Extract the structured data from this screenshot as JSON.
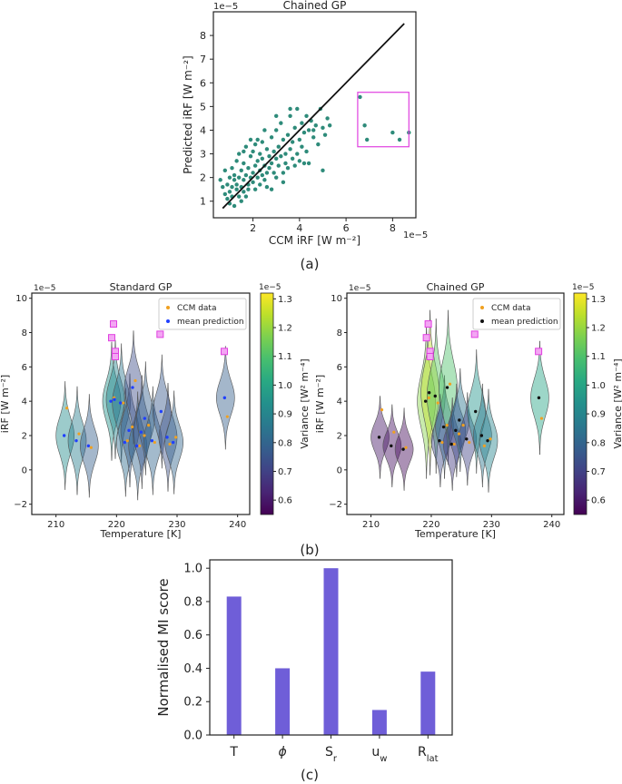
{
  "chart_data": [
    {
      "id": "a",
      "type": "scatter",
      "title": "Chained GP",
      "xlabel": "CCM iRF [W m⁻²]",
      "ylabel": "Predicted iRF [W m⁻²]",
      "x_offset": "1e−5",
      "y_offset": "1e−5",
      "xticks": [
        "2",
        "4",
        "6",
        "8"
      ],
      "yticks": [
        "1",
        "2",
        "3",
        "4",
        "5",
        "6",
        "7",
        "8"
      ],
      "xlim": [
        0.3,
        9.0
      ],
      "ylim": [
        0.3,
        9.0
      ],
      "identity_line": [
        [
          0.7,
          0.7
        ],
        [
          8.5,
          8.5
        ]
      ],
      "highlight_box": {
        "x": [
          6.5,
          8.7
        ],
        "y": [
          3.3,
          5.6
        ]
      },
      "point_color": "#2e8b7a",
      "points": [
        [
          0.6,
          1.9
        ],
        [
          0.7,
          1.6
        ],
        [
          0.8,
          1.3
        ],
        [
          0.8,
          2.3
        ],
        [
          0.9,
          1.7
        ],
        [
          0.9,
          1.1
        ],
        [
          1.0,
          2.0
        ],
        [
          1.0,
          1.4
        ],
        [
          1.0,
          0.9
        ],
        [
          1.1,
          2.4
        ],
        [
          1.1,
          1.6
        ],
        [
          1.1,
          1.2
        ],
        [
          1.2,
          1.9
        ],
        [
          1.2,
          2.1
        ],
        [
          1.2,
          0.8
        ],
        [
          1.3,
          1.5
        ],
        [
          1.3,
          1.7
        ],
        [
          1.3,
          2.7
        ],
        [
          1.4,
          1.2
        ],
        [
          1.4,
          2.0
        ],
        [
          1.4,
          3.0
        ],
        [
          1.5,
          1.6
        ],
        [
          1.5,
          2.3
        ],
        [
          1.5,
          1.0
        ],
        [
          1.6,
          1.9
        ],
        [
          1.6,
          1.4
        ],
        [
          1.6,
          2.6
        ],
        [
          1.7,
          1.2
        ],
        [
          1.7,
          2.1
        ],
        [
          1.7,
          3.3
        ],
        [
          1.8,
          1.7
        ],
        [
          1.8,
          2.4
        ],
        [
          1.8,
          1.5
        ],
        [
          1.9,
          2.0
        ],
        [
          1.9,
          2.9
        ],
        [
          1.9,
          3.6
        ],
        [
          2.0,
          1.8
        ],
        [
          2.0,
          2.2
        ],
        [
          2.0,
          3.1
        ],
        [
          2.1,
          1.5
        ],
        [
          2.1,
          2.5
        ],
        [
          2.1,
          3.4
        ],
        [
          2.2,
          2.0
        ],
        [
          2.2,
          2.7
        ],
        [
          2.3,
          1.7
        ],
        [
          2.3,
          2.3
        ],
        [
          2.3,
          3.0
        ],
        [
          2.4,
          2.1
        ],
        [
          2.4,
          2.8
        ],
        [
          2.4,
          3.5
        ],
        [
          2.5,
          1.9
        ],
        [
          2.5,
          2.5
        ],
        [
          2.6,
          2.2
        ],
        [
          2.6,
          3.2
        ],
        [
          2.6,
          1.6
        ],
        [
          2.7,
          2.4
        ],
        [
          2.7,
          2.9
        ],
        [
          2.8,
          2.6
        ],
        [
          2.8,
          3.7
        ],
        [
          2.8,
          1.5
        ],
        [
          2.9,
          2.2
        ],
        [
          2.9,
          3.1
        ],
        [
          3.0,
          2.8
        ],
        [
          3.0,
          2.0
        ],
        [
          3.0,
          4.0
        ],
        [
          3.1,
          3.3
        ],
        [
          3.1,
          2.5
        ],
        [
          3.2,
          2.9
        ],
        [
          3.2,
          4.3
        ],
        [
          3.3,
          2.2
        ],
        [
          3.3,
          3.6
        ],
        [
          3.3,
          1.8
        ],
        [
          3.4,
          3.0
        ],
        [
          3.4,
          2.6
        ],
        [
          3.5,
          3.8
        ],
        [
          3.5,
          2.4
        ],
        [
          3.6,
          3.2
        ],
        [
          3.6,
          4.6
        ],
        [
          3.7,
          2.8
        ],
        [
          3.7,
          3.5
        ],
        [
          3.8,
          2.5
        ],
        [
          3.8,
          4.1
        ],
        [
          3.9,
          3.0
        ],
        [
          3.9,
          4.9
        ],
        [
          4.0,
          3.6
        ],
        [
          4.0,
          2.7
        ],
        [
          4.1,
          4.3
        ],
        [
          4.1,
          3.3
        ],
        [
          4.2,
          2.6
        ],
        [
          4.2,
          3.9
        ],
        [
          4.3,
          4.6
        ],
        [
          4.3,
          3.1
        ],
        [
          4.4,
          4.0
        ],
        [
          4.4,
          2.6
        ],
        [
          4.5,
          4.4
        ],
        [
          4.6,
          3.7
        ],
        [
          4.7,
          4.2
        ],
        [
          4.8,
          3.4
        ],
        [
          4.9,
          4.9
        ],
        [
          5.0,
          4.1
        ],
        [
          5.0,
          2.3
        ],
        [
          5.1,
          3.8
        ],
        [
          5.2,
          4.5
        ],
        [
          5.3,
          4.2
        ],
        [
          2.2,
          3.6
        ],
        [
          1.6,
          3.1
        ],
        [
          2.5,
          4.0
        ],
        [
          3.0,
          4.6
        ],
        [
          3.6,
          4.9
        ],
        [
          4.6,
          4.0
        ],
        [
          6.6,
          5.4
        ],
        [
          6.8,
          4.2
        ],
        [
          6.9,
          3.6
        ],
        [
          8.0,
          3.9
        ],
        [
          8.3,
          3.6
        ],
        [
          8.7,
          3.9
        ]
      ]
    },
    {
      "id": "b_standard",
      "type": "violin",
      "title": "Standard GP",
      "xlabel": "Temperature [K]",
      "ylabel": "iRF [W m⁻²]",
      "y_offset": "1e−5",
      "xticks": [
        "210",
        "220",
        "230",
        "240"
      ],
      "yticks": [
        "−2",
        "0",
        "2",
        "4",
        "6",
        "8",
        "10"
      ],
      "xlim": [
        206,
        242
      ],
      "ylim": [
        -2.6,
        10.3
      ],
      "colorbar": {
        "label": "Variance [W² m⁻⁴]",
        "offset": "1e−5",
        "min": 0.55,
        "max": 1.32,
        "ticks": [
          "0.6",
          "0.7",
          "0.8",
          "0.9",
          "1.0",
          "1.1",
          "1.2",
          "1.3"
        ]
      },
      "legend": [
        "CCM data",
        "mean prediction"
      ],
      "ccm_color": "#f0a020",
      "pred_color": "#2040ff",
      "violins": [
        {
          "t": 211.5,
          "mean": 2.0,
          "sd": 1.05,
          "var": 0.92
        },
        {
          "t": 213.5,
          "mean": 1.7,
          "sd": 1.05,
          "var": 0.88
        },
        {
          "t": 215.5,
          "mean": 1.4,
          "sd": 1.0,
          "var": 0.78
        },
        {
          "t": 219.2,
          "mean": 4.0,
          "sd": 1.15,
          "var": 0.95
        },
        {
          "t": 219.8,
          "mean": 4.1,
          "sd": 1.15,
          "var": 0.9
        },
        {
          "t": 220.8,
          "mean": 3.9,
          "sd": 1.15,
          "var": 0.85
        },
        {
          "t": 221.5,
          "mean": 1.6,
          "sd": 1.05,
          "var": 0.82
        },
        {
          "t": 222.2,
          "mean": 2.3,
          "sd": 1.1,
          "var": 0.77
        },
        {
          "t": 222.8,
          "mean": 4.8,
          "sd": 1.1,
          "var": 0.73
        },
        {
          "t": 223.5,
          "mean": 1.4,
          "sd": 1.05,
          "var": 0.8
        },
        {
          "t": 224.2,
          "mean": 2.2,
          "sd": 1.1,
          "var": 0.75
        },
        {
          "t": 224.8,
          "mean": 3.0,
          "sd": 1.1,
          "var": 0.78
        },
        {
          "t": 226.0,
          "mean": 1.7,
          "sd": 1.05,
          "var": 0.8
        },
        {
          "t": 227.5,
          "mean": 3.4,
          "sd": 1.1,
          "var": 0.76
        },
        {
          "t": 228.5,
          "mean": 1.9,
          "sd": 1.05,
          "var": 0.74
        },
        {
          "t": 229.5,
          "mean": 1.6,
          "sd": 1.0,
          "var": 0.8
        },
        {
          "t": 238.0,
          "mean": 4.2,
          "sd": 1.0,
          "var": 0.78
        }
      ],
      "ccm_points": [
        [
          211.5,
          3.6
        ],
        [
          213.5,
          2.1
        ],
        [
          215.5,
          1.3
        ],
        [
          219.3,
          4.2
        ],
        [
          220.8,
          3.9
        ],
        [
          221.5,
          1.7
        ],
        [
          222.3,
          2.5
        ],
        [
          222.8,
          5.2
        ],
        [
          223.5,
          1.4
        ],
        [
          224.3,
          2.0
        ],
        [
          225.0,
          2.6
        ],
        [
          226.0,
          1.6
        ],
        [
          228.5,
          1.5
        ],
        [
          229.5,
          1.9
        ],
        [
          238.0,
          3.1
        ]
      ],
      "highlights": [
        [
          219.5,
          8.5
        ],
        [
          219.2,
          7.7
        ],
        [
          219.8,
          6.9
        ],
        [
          219.8,
          6.6
        ],
        [
          227.2,
          7.9
        ],
        [
          237.8,
          6.9
        ]
      ]
    },
    {
      "id": "b_chained",
      "type": "violin",
      "title": "Chained GP",
      "xlabel": "Temperature [K]",
      "ylabel": "iRF [W m⁻²]",
      "y_offset": "1e−5",
      "xticks": [
        "210",
        "220",
        "230",
        "240"
      ],
      "yticks": [
        "−2",
        "0",
        "2",
        "4",
        "6",
        "8",
        "10"
      ],
      "xlim": [
        206,
        242
      ],
      "ylim": [
        -2.6,
        10.3
      ],
      "colorbar": {
        "label": "Variance [W² m⁻⁴]",
        "offset": "1e−5",
        "min": 0.55,
        "max": 1.32,
        "ticks": [
          "0.6",
          "0.7",
          "0.8",
          "0.9",
          "1.0",
          "1.1",
          "1.2",
          "1.3"
        ]
      },
      "legend": [
        "CCM data",
        "mean prediction"
      ],
      "ccm_color": "#f0a020",
      "pred_color": "#111111",
      "violins": [
        {
          "t": 211.5,
          "mean": 1.9,
          "sd": 0.8,
          "var": 0.6
        },
        {
          "t": 213.5,
          "mean": 1.4,
          "sd": 0.8,
          "var": 0.58
        },
        {
          "t": 215.5,
          "mean": 1.2,
          "sd": 0.8,
          "var": 0.57
        },
        {
          "t": 219.2,
          "mean": 4.0,
          "sd": 1.5,
          "var": 1.18
        },
        {
          "t": 219.8,
          "mean": 4.5,
          "sd": 1.6,
          "var": 1.25
        },
        {
          "t": 220.8,
          "mean": 4.3,
          "sd": 1.5,
          "var": 1.12
        },
        {
          "t": 221.5,
          "mean": 1.7,
          "sd": 0.9,
          "var": 0.72
        },
        {
          "t": 222.2,
          "mean": 2.5,
          "sd": 1.0,
          "var": 0.8
        },
        {
          "t": 222.8,
          "mean": 4.8,
          "sd": 1.5,
          "var": 1.1
        },
        {
          "t": 223.5,
          "mean": 1.5,
          "sd": 0.9,
          "var": 0.68
        },
        {
          "t": 224.2,
          "mean": 2.3,
          "sd": 0.9,
          "var": 0.72
        },
        {
          "t": 224.8,
          "mean": 2.9,
          "sd": 1.0,
          "var": 0.85
        },
        {
          "t": 226.0,
          "mean": 1.8,
          "sd": 0.9,
          "var": 0.7
        },
        {
          "t": 227.5,
          "mean": 3.4,
          "sd": 1.2,
          "var": 0.95
        },
        {
          "t": 228.5,
          "mean": 2.0,
          "sd": 1.0,
          "var": 0.85
        },
        {
          "t": 229.5,
          "mean": 1.7,
          "sd": 1.0,
          "var": 0.9
        },
        {
          "t": 238.0,
          "mean": 4.2,
          "sd": 1.1,
          "var": 1.0
        }
      ],
      "ccm_points": [
        [
          211.5,
          3.5
        ],
        [
          213.5,
          2.2
        ],
        [
          215.5,
          1.3
        ],
        [
          219.3,
          4.2
        ],
        [
          220.8,
          3.9
        ],
        [
          221.5,
          1.6
        ],
        [
          222.3,
          2.6
        ],
        [
          222.8,
          5.0
        ],
        [
          223.5,
          1.5
        ],
        [
          224.3,
          2.1
        ],
        [
          225.0,
          2.6
        ],
        [
          226.0,
          1.6
        ],
        [
          228.5,
          1.4
        ],
        [
          229.5,
          1.8
        ],
        [
          238.0,
          3.0
        ]
      ],
      "highlights": [
        [
          219.5,
          8.5
        ],
        [
          219.2,
          7.7
        ],
        [
          219.8,
          6.9
        ],
        [
          219.8,
          6.6
        ],
        [
          227.2,
          7.9
        ],
        [
          237.8,
          6.9
        ]
      ]
    },
    {
      "id": "c",
      "type": "bar",
      "title": "",
      "ylabel": "Normalised MI score",
      "categories": [
        "T",
        "ϕ",
        "Sr",
        "uw",
        "Rlat"
      ],
      "category_parts": [
        [
          "T",
          ""
        ],
        [
          "ϕ",
          ""
        ],
        [
          "S",
          "r"
        ],
        [
          "u",
          "w"
        ],
        [
          "R",
          "lat"
        ]
      ],
      "values": [
        0.83,
        0.4,
        1.0,
        0.15,
        0.38
      ],
      "yticks": [
        "0.0",
        "0.2",
        "0.4",
        "0.6",
        "0.8",
        "1.0"
      ],
      "ylim": [
        0,
        1.05
      ],
      "bar_color": "#6f5ed8"
    }
  ],
  "labels": {
    "a": "(a)",
    "b": "(b)",
    "c": "(c)"
  }
}
